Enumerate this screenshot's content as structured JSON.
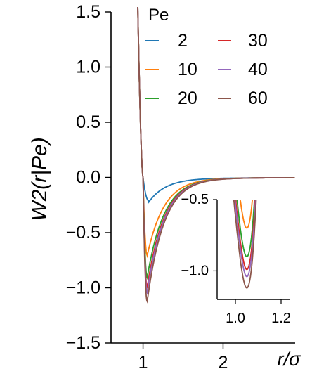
{
  "chart_data": [
    {
      "type": "line",
      "xlabel": "r/σ",
      "ylabel": "W2(r|Pe)",
      "xlim": [
        0.6,
        2.9
      ],
      "ylim": [
        -1.5,
        1.5
      ],
      "xticks": [
        1,
        2
      ],
      "yticks": [
        1.5,
        1.0,
        0.5,
        0.0,
        -0.5,
        -1.0,
        -1.5
      ],
      "ytick_labels": [
        "1.5",
        "1.0",
        "0.5",
        "0.0",
        "−0.5",
        "−1.0",
        "−1.5"
      ],
      "legend": {
        "title": "Pe",
        "placement": "top-right"
      },
      "series": [
        {
          "name": "2",
          "color": "#1f77b4",
          "min_y": -0.21,
          "min_x": 1.07
        },
        {
          "name": "10",
          "color": "#ff7f0e",
          "min_y": -0.7,
          "min_x": 1.05
        },
        {
          "name": "20",
          "color": "#2ca02c",
          "min_y": -0.9,
          "min_x": 1.05
        },
        {
          "name": "30",
          "color": "#d62728",
          "min_y": -0.99,
          "min_x": 1.05
        },
        {
          "name": "40",
          "color": "#9467bd",
          "min_y": -1.04,
          "min_x": 1.05
        },
        {
          "name": "60",
          "color": "#8c564b",
          "min_y": -1.12,
          "min_x": 1.05
        }
      ]
    },
    {
      "type": "line",
      "role": "inset",
      "xlim": [
        0.92,
        1.24
      ],
      "ylim": [
        -1.2,
        -0.5
      ],
      "xticks": [
        1.0,
        1.2
      ],
      "xtick_labels": [
        "1.0",
        "1.2"
      ],
      "yticks": [
        -0.5,
        -1.0
      ],
      "ytick_labels": [
        "−0.5",
        "−1.0"
      ]
    }
  ]
}
